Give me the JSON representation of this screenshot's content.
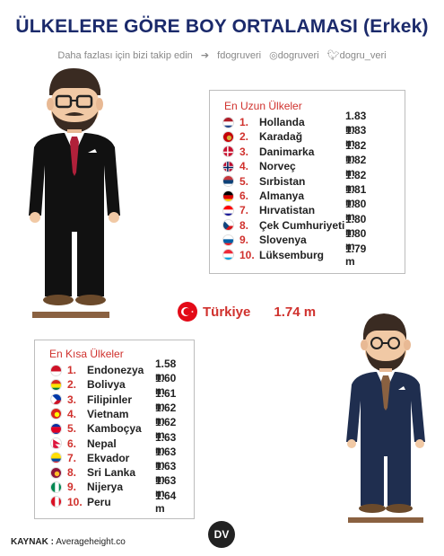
{
  "header": {
    "title": "ÜLKELERE GÖRE BOY ORTALAMASI (Erkek)",
    "follow_text": "Daha fazlası için bizi takip edin",
    "facebook": "dogruveri",
    "instagram": "dogruveri",
    "twitter": "dogru_veri"
  },
  "tallest": {
    "title": "En Uzun Ülkeler",
    "items": [
      {
        "rank": "1.",
        "country": "Hollanda",
        "value": "1.83 m"
      },
      {
        "rank": "2.",
        "country": "Karadağ",
        "value": "1.83 m"
      },
      {
        "rank": "3.",
        "country": "Danimarka",
        "value": "1.82 m"
      },
      {
        "rank": "4.",
        "country": "Norveç",
        "value": "1.82 m"
      },
      {
        "rank": "5.",
        "country": "Sırbistan",
        "value": "1.82 m"
      },
      {
        "rank": "6.",
        "country": "Almanya",
        "value": "1.81 m"
      },
      {
        "rank": "7.",
        "country": "Hırvatistan",
        "value": "1.80 m"
      },
      {
        "rank": "8.",
        "country": "Çek Cumhuriyeti",
        "value": "1.80 m"
      },
      {
        "rank": "9.",
        "country": "Slovenya",
        "value": "1.80 m"
      },
      {
        "rank": "10.",
        "country": "Lüksemburg",
        "value": "1.79 m"
      }
    ]
  },
  "turkey": {
    "label": "Türkiye",
    "value": "1.74 m"
  },
  "shortest": {
    "title": "En Kısa Ülkeler",
    "items": [
      {
        "rank": "1.",
        "country": "Endonezya",
        "value": "1.58 m"
      },
      {
        "rank": "2.",
        "country": "Bolivya",
        "value": "1.60 m"
      },
      {
        "rank": "3.",
        "country": "Filipinler",
        "value": "1.61 m"
      },
      {
        "rank": "4.",
        "country": "Vietnam",
        "value": "1.62 m"
      },
      {
        "rank": "5.",
        "country": "Kamboçya",
        "value": "1.62 m"
      },
      {
        "rank": "6.",
        "country": "Nepal",
        "value": "1.63 m"
      },
      {
        "rank": "7.",
        "country": "Ekvador",
        "value": "1.63 m"
      },
      {
        "rank": "8.",
        "country": "Sri Lanka",
        "value": "1.63 m"
      },
      {
        "rank": "9.",
        "country": "Nijerya",
        "value": "1.63 m"
      },
      {
        "rank": "10.",
        "country": "Peru",
        "value": "1.64 m"
      }
    ]
  },
  "footer": {
    "source_label": "KAYNAK :",
    "source_value": "Averageheight.co",
    "logo_text": "DV"
  }
}
